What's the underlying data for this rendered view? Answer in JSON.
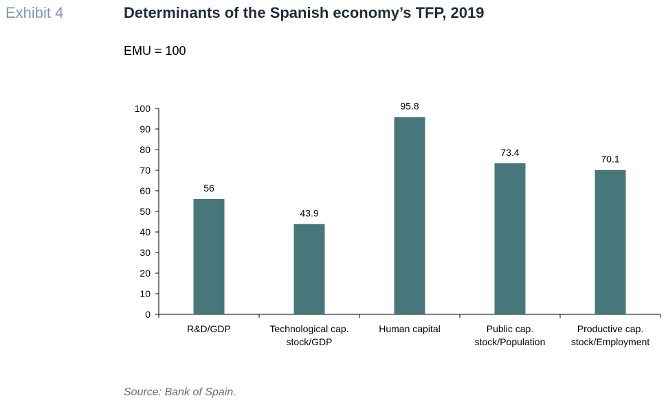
{
  "header": {
    "exhibit": "Exhibit 4",
    "title": "Determinants of the Spanish economy’s TFP, 2019",
    "unit": "EMU = 100"
  },
  "footer": {
    "source": "Source: Bank of Spain."
  },
  "colors": {
    "bar": "#47777b",
    "axis": "#000000",
    "text": "#000000"
  },
  "chart_data": {
    "type": "bar",
    "categories": [
      [
        "R&D/GDP"
      ],
      [
        "Technological cap.",
        "stock/GDP"
      ],
      [
        "Human capital"
      ],
      [
        "Public cap.",
        "stock/Population"
      ],
      [
        "Productive cap.",
        "stock/Employment"
      ]
    ],
    "values": [
      56,
      43.9,
      95.8,
      73.4,
      70.1
    ],
    "data_labels": [
      "56",
      "43.9",
      "95.8",
      "73.4",
      "70.1"
    ],
    "yticks": [
      0,
      10,
      20,
      30,
      40,
      50,
      60,
      70,
      80,
      90,
      100
    ],
    "ylim": [
      0,
      100
    ],
    "grid": false,
    "legend": "none"
  }
}
